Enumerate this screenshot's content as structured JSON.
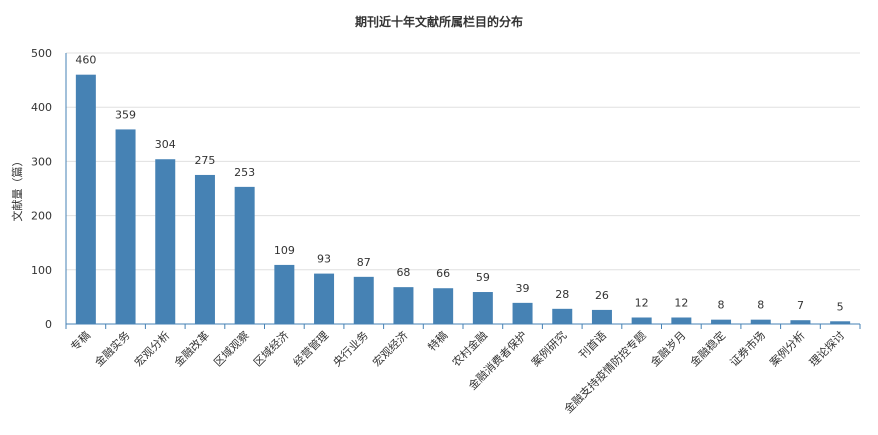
{
  "chart_data": {
    "type": "bar",
    "title": "期刊近十年文献所属栏目的分布",
    "xlabel": "",
    "ylabel": "文献量（篇）",
    "ylim": [
      0,
      500
    ],
    "yticks": [
      0,
      100,
      200,
      300,
      400,
      500
    ],
    "grid": true,
    "legend": "none",
    "bar_color": "#4682b4",
    "categories": [
      "专稿",
      "金融实务",
      "宏观分析",
      "金融改革",
      "区域观察",
      "区域经济",
      "经营管理",
      "央行业务",
      "宏观经济",
      "特稿",
      "农村金融",
      "金融消费者保护",
      "案例研究",
      "刊首语",
      "金融支持疫情防控专题",
      "金融岁月",
      "金融稳定",
      "证券市场",
      "案例分析",
      "理论探讨"
    ],
    "values": [
      460,
      359,
      304,
      275,
      253,
      109,
      93,
      87,
      68,
      66,
      59,
      39,
      28,
      26,
      12,
      12,
      8,
      8,
      7,
      5
    ]
  }
}
